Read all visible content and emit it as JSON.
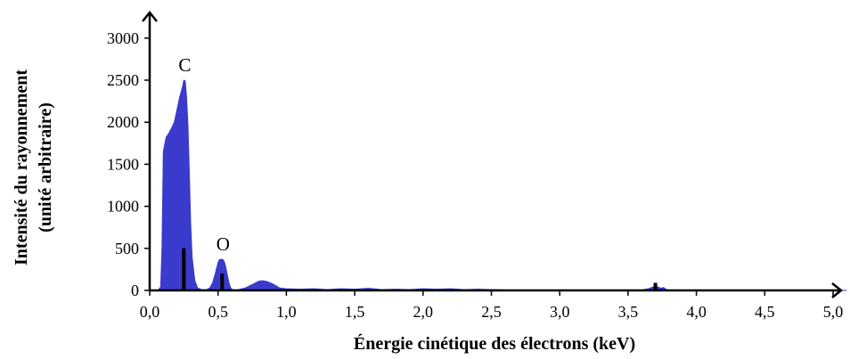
{
  "chart_data": {
    "type": "area",
    "title": "",
    "xlabel": "Énergie cinétique des électrons (keV)",
    "ylabel_line1": "Intensité du rayonnement",
    "ylabel_line2": "(unité arbitraire)",
    "xlim": [
      0,
      5.1
    ],
    "ylim": [
      0,
      3200
    ],
    "x_ticks": [
      0,
      0.5,
      1.0,
      1.5,
      2.0,
      2.5,
      3.0,
      3.5,
      4.0,
      4.5,
      5.0
    ],
    "x_tick_labels": [
      "0,0",
      "0,5",
      "1,0",
      "1,5",
      "2,0",
      "2,5",
      "3,0",
      "3,5",
      "4,0",
      "4,5",
      "5,0"
    ],
    "y_ticks": [
      0,
      500,
      1000,
      1500,
      2000,
      2500,
      3000
    ],
    "y_tick_labels": [
      "0",
      "500",
      "1000",
      "1500",
      "2000",
      "2500",
      "3000"
    ],
    "grid": false,
    "fill_color": "#3a3acc",
    "marker_color": "#000000",
    "spectrum": {
      "x": [
        0.06,
        0.08,
        0.09,
        0.1,
        0.12,
        0.14,
        0.16,
        0.18,
        0.2,
        0.22,
        0.24,
        0.25,
        0.26,
        0.27,
        0.28,
        0.29,
        0.3,
        0.31,
        0.33,
        0.35,
        0.38,
        0.4,
        0.42,
        0.44,
        0.46,
        0.48,
        0.5,
        0.51,
        0.52,
        0.53,
        0.54,
        0.55,
        0.56,
        0.57,
        0.58,
        0.59,
        0.6,
        0.62,
        0.65,
        0.7,
        0.75,
        0.8,
        0.83,
        0.86,
        0.89,
        0.92,
        0.95,
        1.0,
        1.1,
        1.2,
        1.3,
        1.4,
        1.5,
        1.6,
        1.7,
        1.8,
        1.9,
        2.0,
        2.1,
        2.2,
        2.3,
        2.4,
        2.5,
        2.6,
        2.7,
        2.8,
        2.9,
        3.0,
        3.1,
        3.2,
        3.3,
        3.4,
        3.5,
        3.6,
        3.65,
        3.68,
        3.7,
        3.72,
        3.74,
        3.76,
        3.78,
        3.8,
        3.85,
        4.0,
        4.5,
        5.1
      ],
      "y": [
        0,
        40,
        500,
        1650,
        1820,
        1870,
        1930,
        2000,
        2150,
        2300,
        2420,
        2500,
        2490,
        2300,
        1950,
        1400,
        800,
        400,
        120,
        30,
        10,
        8,
        12,
        30,
        90,
        200,
        330,
        365,
        370,
        370,
        360,
        320,
        250,
        170,
        90,
        40,
        15,
        5,
        10,
        30,
        70,
        110,
        115,
        105,
        85,
        60,
        30,
        20,
        15,
        20,
        10,
        20,
        15,
        25,
        10,
        15,
        10,
        20,
        15,
        20,
        10,
        15,
        10,
        5,
        5,
        5,
        5,
        5,
        5,
        5,
        5,
        5,
        5,
        5,
        20,
        40,
        50,
        40,
        25,
        35,
        10,
        5,
        5,
        5,
        5,
        0
      ]
    },
    "peaks": [
      {
        "label": "C",
        "energy": 0.25,
        "peak_intensity": 2500,
        "marker_height": 500
      },
      {
        "label": "O",
        "energy": 0.53,
        "peak_intensity": 370,
        "marker_height": 200
      },
      {
        "label": "",
        "energy": 3.7,
        "peak_intensity": 50,
        "marker_height": 90
      }
    ]
  }
}
